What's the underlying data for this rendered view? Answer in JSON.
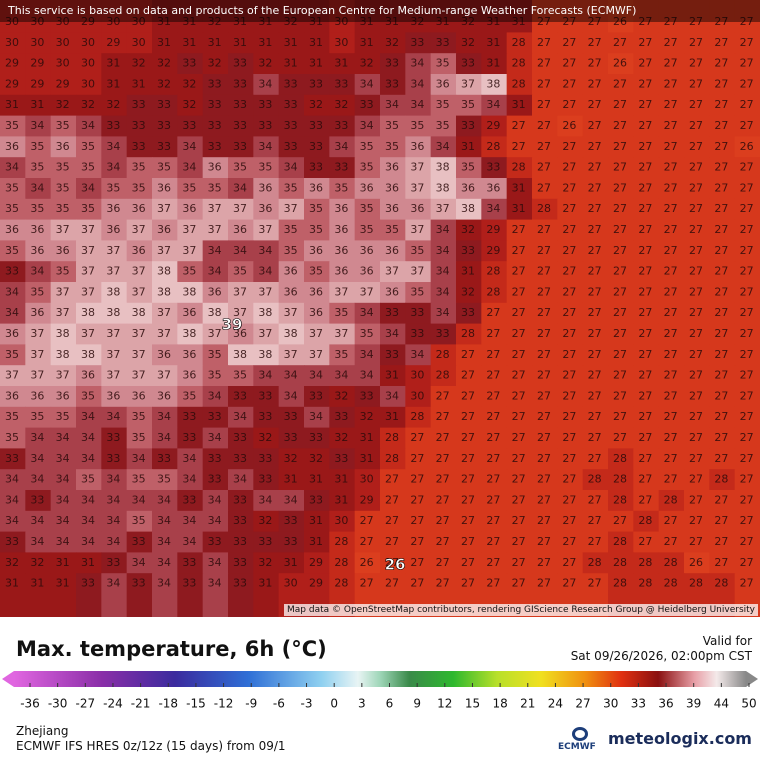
{
  "header": {
    "notice": "This service is based on data and products of the European Centre for Medium-range Weather Forecasts (ECMWF)"
  },
  "map": {
    "grid": [
      [
        30,
        30,
        30,
        29,
        30,
        30,
        31,
        31,
        32,
        31,
        31,
        32,
        31,
        30,
        31,
        31,
        32,
        31,
        32,
        31,
        31,
        27,
        27,
        27,
        26,
        27,
        27,
        27,
        27,
        27
      ],
      [
        30,
        30,
        30,
        30,
        29,
        30,
        31,
        31,
        31,
        31,
        31,
        31,
        31,
        30,
        31,
        32,
        33,
        33,
        32,
        31,
        28,
        27,
        27,
        27,
        27,
        27,
        27,
        27,
        27,
        27
      ],
      [
        29,
        29,
        30,
        30,
        31,
        32,
        32,
        33,
        32,
        33,
        32,
        31,
        31,
        31,
        32,
        33,
        34,
        35,
        33,
        31,
        28,
        27,
        27,
        27,
        26,
        27,
        27,
        27,
        27,
        27
      ],
      [
        29,
        29,
        29,
        30,
        31,
        31,
        32,
        32,
        33,
        33,
        34,
        33,
        33,
        33,
        34,
        33,
        34,
        36,
        37,
        38,
        28,
        27,
        27,
        27,
        27,
        27,
        27,
        27,
        27,
        27
      ],
      [
        31,
        31,
        32,
        32,
        32,
        33,
        33,
        32,
        33,
        33,
        33,
        33,
        32,
        32,
        33,
        34,
        34,
        35,
        35,
        34,
        31,
        27,
        27,
        27,
        27,
        27,
        27,
        27,
        27,
        27
      ],
      [
        35,
        34,
        35,
        34,
        33,
        33,
        33,
        33,
        33,
        33,
        33,
        33,
        33,
        33,
        34,
        35,
        35,
        35,
        33,
        29,
        27,
        27,
        26,
        27,
        27,
        27,
        27,
        27,
        27,
        27
      ],
      [
        36,
        35,
        36,
        35,
        34,
        33,
        33,
        34,
        33,
        33,
        34,
        33,
        33,
        34,
        35,
        35,
        36,
        34,
        31,
        28,
        27,
        27,
        27,
        27,
        27,
        27,
        27,
        27,
        27,
        26
      ],
      [
        34,
        35,
        35,
        35,
        34,
        35,
        35,
        34,
        36,
        35,
        35,
        34,
        33,
        33,
        35,
        36,
        37,
        38,
        35,
        33,
        28,
        27,
        27,
        27,
        27,
        27,
        27,
        27,
        27,
        27
      ],
      [
        35,
        34,
        35,
        34,
        35,
        35,
        36,
        35,
        35,
        34,
        36,
        35,
        36,
        35,
        36,
        36,
        37,
        38,
        36,
        36,
        31,
        27,
        27,
        27,
        27,
        27,
        27,
        27,
        27,
        27
      ],
      [
        35,
        35,
        35,
        35,
        36,
        36,
        37,
        36,
        37,
        37,
        36,
        37,
        35,
        36,
        35,
        36,
        36,
        37,
        38,
        34,
        31,
        28,
        27,
        27,
        27,
        27,
        27,
        27,
        27,
        27
      ],
      [
        36,
        36,
        37,
        37,
        36,
        37,
        36,
        37,
        37,
        36,
        37,
        35,
        35,
        36,
        35,
        35,
        37,
        34,
        32,
        29,
        27,
        27,
        27,
        27,
        27,
        27,
        27,
        27,
        27,
        27
      ],
      [
        35,
        36,
        36,
        37,
        37,
        36,
        37,
        37,
        34,
        34,
        34,
        35,
        36,
        36,
        36,
        36,
        35,
        34,
        33,
        29,
        27,
        27,
        27,
        27,
        27,
        27,
        27,
        27,
        27,
        27
      ],
      [
        33,
        34,
        35,
        37,
        37,
        37,
        38,
        35,
        34,
        35,
        34,
        36,
        35,
        36,
        36,
        37,
        37,
        34,
        31,
        28,
        27,
        27,
        27,
        27,
        27,
        27,
        27,
        27,
        27,
        27
      ],
      [
        34,
        35,
        37,
        37,
        38,
        37,
        38,
        38,
        36,
        37,
        37,
        36,
        36,
        37,
        37,
        36,
        35,
        34,
        32,
        28,
        27,
        27,
        27,
        27,
        27,
        27,
        27,
        27,
        27,
        27
      ],
      [
        34,
        36,
        37,
        38,
        38,
        38,
        37,
        36,
        38,
        37,
        38,
        37,
        36,
        35,
        34,
        33,
        33,
        34,
        33,
        27,
        27,
        27,
        27,
        27,
        27,
        27,
        27,
        27,
        27,
        27
      ],
      [
        36,
        37,
        38,
        37,
        37,
        37,
        37,
        38,
        37,
        36,
        37,
        38,
        37,
        37,
        35,
        34,
        33,
        33,
        28,
        27,
        27,
        27,
        27,
        27,
        27,
        27,
        27,
        27,
        27,
        27
      ],
      [
        35,
        37,
        38,
        38,
        37,
        37,
        36,
        36,
        35,
        38,
        38,
        37,
        37,
        35,
        34,
        33,
        34,
        28,
        27,
        27,
        27,
        27,
        27,
        27,
        27,
        27,
        27,
        27,
        27,
        27
      ],
      [
        37,
        37,
        37,
        36,
        37,
        37,
        37,
        36,
        35,
        35,
        34,
        34,
        34,
        34,
        34,
        31,
        30,
        28,
        27,
        27,
        27,
        27,
        27,
        27,
        27,
        27,
        27,
        27,
        27,
        27
      ],
      [
        36,
        36,
        36,
        35,
        36,
        36,
        36,
        35,
        34,
        33,
        33,
        34,
        33,
        32,
        33,
        34,
        30,
        27,
        27,
        27,
        27,
        27,
        27,
        27,
        27,
        27,
        27,
        27,
        27,
        27
      ],
      [
        35,
        35,
        35,
        34,
        34,
        35,
        34,
        33,
        33,
        34,
        33,
        33,
        34,
        33,
        32,
        31,
        28,
        27,
        27,
        27,
        27,
        27,
        27,
        27,
        27,
        27,
        27,
        27,
        27,
        27
      ],
      [
        35,
        34,
        34,
        34,
        33,
        35,
        34,
        33,
        34,
        33,
        32,
        33,
        33,
        32,
        31,
        28,
        27,
        27,
        27,
        27,
        27,
        27,
        27,
        27,
        27,
        27,
        27,
        27,
        27,
        27
      ],
      [
        33,
        34,
        34,
        34,
        33,
        34,
        33,
        34,
        33,
        33,
        33,
        32,
        32,
        33,
        31,
        28,
        27,
        27,
        27,
        27,
        27,
        27,
        27,
        27,
        28,
        27,
        27,
        27,
        27,
        27
      ],
      [
        34,
        34,
        34,
        35,
        34,
        35,
        35,
        34,
        33,
        34,
        33,
        31,
        31,
        31,
        30,
        27,
        27,
        27,
        27,
        27,
        27,
        27,
        27,
        28,
        28,
        27,
        27,
        27,
        28,
        27
      ],
      [
        34,
        33,
        34,
        34,
        34,
        34,
        34,
        33,
        34,
        33,
        34,
        34,
        33,
        31,
        29,
        27,
        27,
        27,
        27,
        27,
        27,
        27,
        27,
        27,
        28,
        27,
        28,
        27,
        27,
        27
      ],
      [
        34,
        34,
        34,
        34,
        34,
        35,
        34,
        34,
        34,
        33,
        32,
        33,
        31,
        30,
        27,
        27,
        27,
        27,
        27,
        27,
        27,
        27,
        27,
        27,
        27,
        28,
        27,
        27,
        27,
        27
      ],
      [
        33,
        34,
        34,
        34,
        34,
        33,
        34,
        34,
        33,
        33,
        33,
        33,
        31,
        28,
        27,
        27,
        27,
        27,
        27,
        27,
        27,
        27,
        27,
        27,
        28,
        27,
        27,
        27,
        27,
        27
      ],
      [
        32,
        32,
        31,
        31,
        33,
        34,
        34,
        33,
        34,
        33,
        32,
        31,
        29,
        28,
        26,
        27,
        27,
        27,
        27,
        27,
        27,
        27,
        27,
        28,
        28,
        28,
        28,
        26,
        27,
        27
      ],
      [
        31,
        31,
        31,
        33,
        34,
        33,
        34,
        33,
        34,
        33,
        31,
        30,
        29,
        28,
        27,
        27,
        27,
        27,
        27,
        27,
        27,
        27,
        27,
        27,
        28,
        28,
        28,
        28,
        28,
        27
      ]
    ],
    "max_label": 39,
    "min_label": 26,
    "attribution": "Map data © OpenStreetMap contributors, rendering GIScience Research Group @ Heidelberg University"
  },
  "legend": {
    "title": "Max. temperature, 6h (°C)",
    "valid_label": "Valid for",
    "valid_time": "Sat 09/26/2026, 02:00pm CST",
    "ticks": [
      -36,
      -30,
      -27,
      -24,
      -21,
      -18,
      -15,
      -12,
      -9,
      -6,
      -3,
      0,
      3,
      6,
      9,
      12,
      15,
      18,
      21,
      24,
      27,
      30,
      33,
      36,
      39,
      44,
      50
    ]
  },
  "footer": {
    "region": "Zhejiang",
    "model": "ECMWF IFS HRES 0z/12z (15 days) from 09/1"
  },
  "logos": {
    "ecmwf": "ECMWF",
    "meteologix": "meteologix.com"
  }
}
